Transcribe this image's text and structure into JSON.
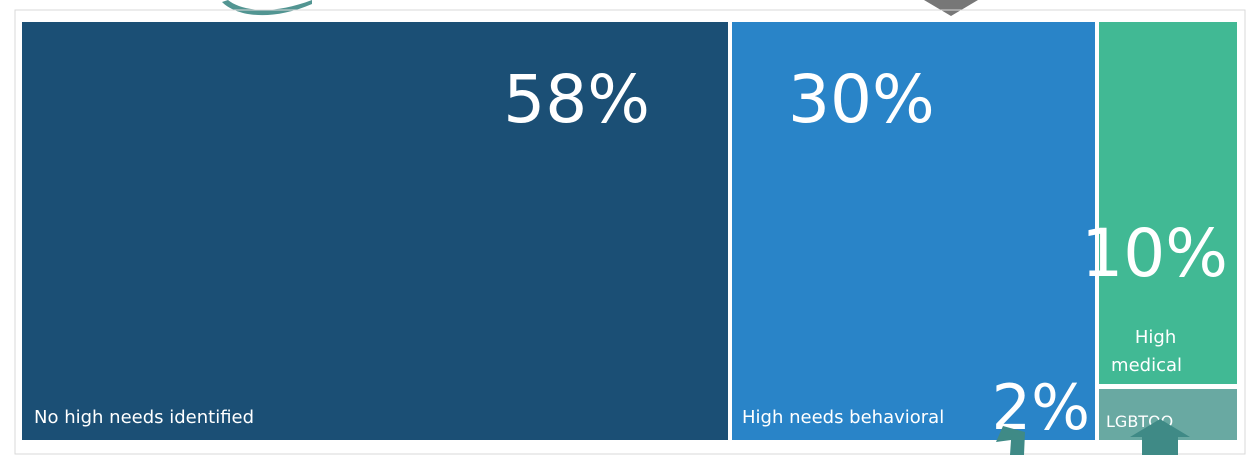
{
  "chart_data": {
    "type": "treemap",
    "title": "",
    "segments": [
      {
        "name": "No high needs identified",
        "label": "No high needs identified",
        "value": 58,
        "value_label": "58%",
        "color": "#1b4f75"
      },
      {
        "name": "High needs behavioral",
        "label": "High needs behavioral",
        "value": 30,
        "value_label": "30%",
        "color": "#2984c8"
      },
      {
        "name": "High medical",
        "label_lines": [
          "High",
          "medical"
        ],
        "value": 10,
        "value_label": "10%",
        "color": "#41b994"
      },
      {
        "name": "LGBTQQ",
        "label": "LGBTQQ",
        "value": 2,
        "value_label": "2%",
        "color": "#69a9a2"
      }
    ],
    "annotations": {
      "arrow_color": "#3f8a86",
      "marker_color": "#777777"
    }
  }
}
